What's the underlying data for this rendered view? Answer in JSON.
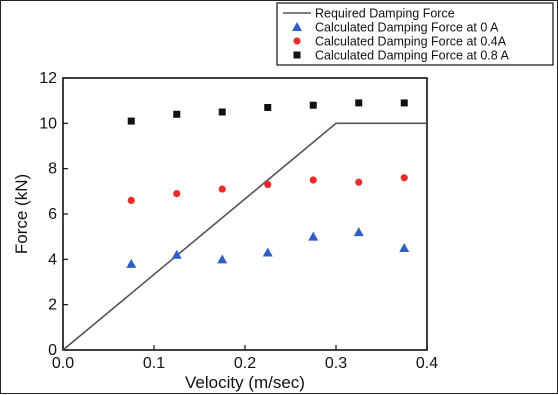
{
  "chart_data": {
    "type": "scatter",
    "title": "",
    "xlabel": "Velocity (m/sec)",
    "ylabel": "Force (kN)",
    "xlim": [
      0.0,
      0.4
    ],
    "ylim": [
      0,
      12
    ],
    "xticks": [
      0.0,
      0.1,
      0.2,
      0.3,
      0.4
    ],
    "xtick_labels": [
      "0.0",
      "0.1",
      "0.2",
      "0.3",
      "0.4"
    ],
    "yticks": [
      0,
      2,
      4,
      6,
      8,
      10,
      12
    ],
    "ytick_labels": [
      "0",
      "2",
      "4",
      "6",
      "8",
      "10",
      "12"
    ],
    "grid": false,
    "legend_position": "top-right",
    "series": [
      {
        "name": "Required Damping Force",
        "kind": "line",
        "color": "#555555",
        "x": [
          0.0,
          0.3,
          0.4
        ],
        "y": [
          0.0,
          10.0,
          10.0
        ]
      },
      {
        "name": "Calculated Damping Force at 0 A",
        "kind": "scatter",
        "marker": "triangle",
        "color": "#2f5fc4",
        "x": [
          0.075,
          0.125,
          0.175,
          0.225,
          0.275,
          0.325,
          0.375
        ],
        "y": [
          3.8,
          4.2,
          4.0,
          4.3,
          5.0,
          5.2,
          4.5
        ]
      },
      {
        "name": "Calculated Damping Force at 0.4A",
        "kind": "scatter",
        "marker": "circle",
        "color": "#ee2b2b",
        "x": [
          0.075,
          0.125,
          0.175,
          0.225,
          0.275,
          0.325,
          0.375
        ],
        "y": [
          6.6,
          6.9,
          7.1,
          7.3,
          7.5,
          7.4,
          7.6
        ]
      },
      {
        "name": "Calculated Damping Force at 0.8 A",
        "kind": "scatter",
        "marker": "square",
        "color": "#111111",
        "x": [
          0.075,
          0.125,
          0.175,
          0.225,
          0.275,
          0.325,
          0.375
        ],
        "y": [
          10.1,
          10.4,
          10.5,
          10.7,
          10.8,
          10.9,
          10.9
        ]
      }
    ]
  }
}
